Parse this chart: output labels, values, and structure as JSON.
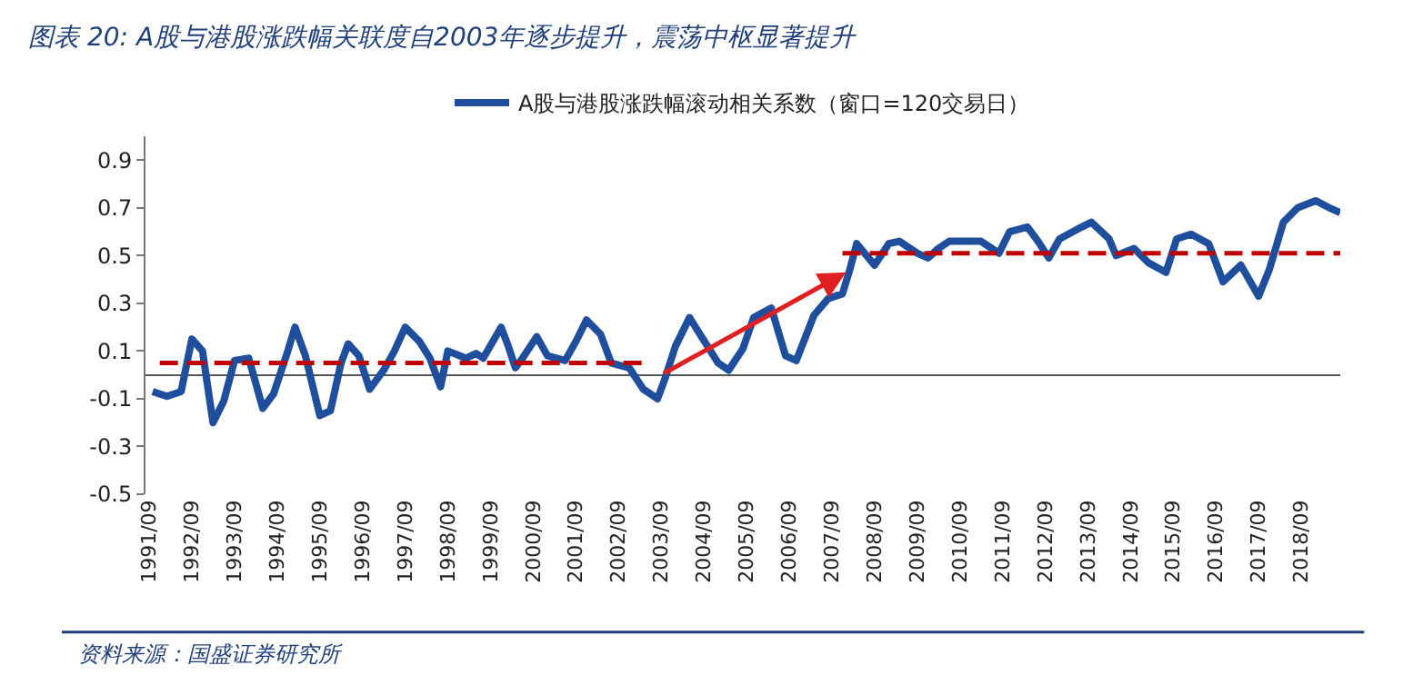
{
  "chart_data": {
    "type": "line",
    "title": "图表 20: A股与港股涨跌幅关联度自2003年逐步提升，震荡中枢显著提升",
    "annotations": [
      "资料来源：国盛证券研究所"
    ],
    "xlim": [
      "1991-08",
      "2019-08"
    ],
    "xticks": [
      {
        "value": "1991-09",
        "label": "1991/09"
      },
      {
        "value": "1992-09",
        "label": "1992/09"
      },
      {
        "value": "1993-09",
        "label": "1993/09"
      },
      {
        "value": "1994-09",
        "label": "1994/09"
      },
      {
        "value": "1995-09",
        "label": "1995/09"
      },
      {
        "value": "1996-09",
        "label": "1996/09"
      },
      {
        "value": "1997-09",
        "label": "1997/09"
      },
      {
        "value": "1998-09",
        "label": "1998/09"
      },
      {
        "value": "1999-09",
        "label": "1999/09"
      },
      {
        "value": "2000-09",
        "label": "2000/09"
      },
      {
        "value": "2001-09",
        "label": "2001/09"
      },
      {
        "value": "2002-09",
        "label": "2002/09"
      },
      {
        "value": "2003-09",
        "label": "2003/09"
      },
      {
        "value": "2004-09",
        "label": "2004/09"
      },
      {
        "value": "2005-09",
        "label": "2005/09"
      },
      {
        "value": "2006-09",
        "label": "2006/09"
      },
      {
        "value": "2007-09",
        "label": "2007/09"
      },
      {
        "value": "2008-09",
        "label": "2008/09"
      },
      {
        "value": "2009-09",
        "label": "2009/09"
      },
      {
        "value": "2010-09",
        "label": "2010/09"
      },
      {
        "value": "2011-09",
        "label": "2011/09"
      },
      {
        "value": "2012-09",
        "label": "2012/09"
      },
      {
        "value": "2013-09",
        "label": "2013/09"
      },
      {
        "value": "2014-09",
        "label": "2014/09"
      },
      {
        "value": "2015-09",
        "label": "2015/09"
      },
      {
        "value": "2016-09",
        "label": "2016/09"
      },
      {
        "value": "2017-09",
        "label": "2017/09"
      },
      {
        "value": "2018-09",
        "label": "2018/09"
      }
    ],
    "ylim": [
      -0.5,
      1.0
    ],
    "yticks": [
      -0.5,
      -0.3,
      -0.1,
      0.1,
      0.3,
      0.5,
      0.7,
      0.9
    ],
    "legend": "top",
    "marker": "none",
    "series": [
      {
        "name": "A股与港股涨跌幅滚动相关系数（窗口=120交易日）",
        "color": "#1f4e9c",
        "line_style": "solid",
        "x": [
          "1991-10",
          "1992-02",
          "1992-06",
          "1992-09",
          "1992-12",
          "1993-03",
          "1993-06",
          "1993-09",
          "1994-01",
          "1994-05",
          "1994-08",
          "1994-12",
          "1995-02",
          "1995-05",
          "1995-09",
          "1995-12",
          "1996-03",
          "1996-05",
          "1996-08",
          "1996-11",
          "1997-03",
          "1997-06",
          "1997-09",
          "1998-01",
          "1998-04",
          "1998-07",
          "1998-09",
          "1999-02",
          "1999-05",
          "1999-07",
          "1999-12",
          "2000-02",
          "2000-04",
          "2000-06",
          "2000-10",
          "2001-01",
          "2001-06",
          "2001-09",
          "2001-12",
          "2002-04",
          "2002-07",
          "2002-12",
          "2003-04",
          "2003-08",
          "2003-10",
          "2004-01",
          "2004-05",
          "2005-01",
          "2005-04",
          "2005-08",
          "2005-11",
          "2006-04",
          "2006-08",
          "2006-11",
          "2007-04",
          "2007-08",
          "2007-12",
          "2008-02",
          "2008-04",
          "2008-09",
          "2009-01",
          "2009-04",
          "2009-09",
          "2009-12",
          "2010-03",
          "2010-06",
          "2010-10",
          "2011-03",
          "2011-08",
          "2011-11",
          "2012-04",
          "2012-07",
          "2012-10",
          "2013-01",
          "2013-06",
          "2013-10",
          "2014-03",
          "2014-05",
          "2014-10",
          "2015-02",
          "2015-07",
          "2015-10",
          "2016-02",
          "2016-07",
          "2016-11",
          "2017-04",
          "2017-09",
          "2017-12",
          "2018-04",
          "2018-08",
          "2019-01",
          "2019-05",
          "2019-08"
        ],
        "values": [
          -0.07,
          -0.09,
          -0.07,
          0.15,
          0.1,
          -0.2,
          -0.11,
          0.06,
          0.07,
          -0.14,
          -0.08,
          0.1,
          0.2,
          0.08,
          -0.17,
          -0.15,
          0.05,
          0.13,
          0.08,
          -0.06,
          0.02,
          0.1,
          0.2,
          0.14,
          0.07,
          -0.05,
          0.1,
          0.07,
          0.09,
          0.07,
          0.2,
          0.12,
          0.03,
          0.07,
          0.16,
          0.08,
          0.06,
          0.14,
          0.23,
          0.17,
          0.05,
          0.03,
          -0.06,
          -0.1,
          -0.02,
          0.12,
          0.24,
          0.05,
          0.02,
          0.11,
          0.24,
          0.28,
          0.08,
          0.06,
          0.25,
          0.32,
          0.34,
          0.44,
          0.55,
          0.46,
          0.55,
          0.56,
          0.51,
          0.49,
          0.53,
          0.56,
          0.56,
          0.56,
          0.51,
          0.6,
          0.62,
          0.56,
          0.49,
          0.57,
          0.61,
          0.64,
          0.57,
          0.5,
          0.53,
          0.47,
          0.43,
          0.57,
          0.59,
          0.55,
          0.39,
          0.46,
          0.33,
          0.44,
          0.64,
          0.7,
          0.73,
          0.7,
          0.68
        ]
      },
      {
        "color": "#c00000",
        "line_style": "dashed",
        "x": [
          "1991-12",
          "2003-05"
        ],
        "values": [
          0.05,
          0.05
        ]
      },
      {
        "color": "#c00000",
        "line_style": "dashed",
        "x": [
          "2007-12",
          "2019-08"
        ],
        "values": [
          0.51,
          0.51
        ]
      }
    ]
  }
}
